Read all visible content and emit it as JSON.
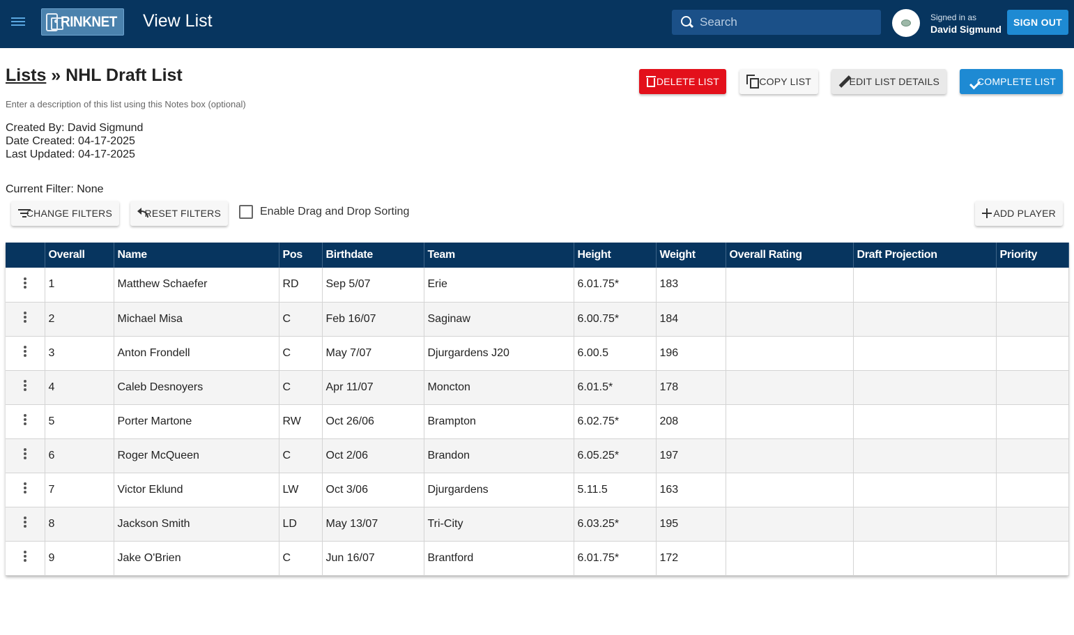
{
  "header": {
    "logo_text": "RINKNET",
    "app_title": "View List",
    "search_placeholder": "Search",
    "signed_in_label": "Signed in as",
    "user_name": "David Sigmund",
    "sign_out_label": "SIGN OUT"
  },
  "page": {
    "breadcrumb_link": "Lists",
    "breadcrumb_sep": " » ",
    "list_name": "NHL Draft List",
    "description": "Enter a description of this list using this Notes box (optional)",
    "created_by": "Created By: David Sigmund",
    "date_created": "Date Created: 04-17-2025",
    "last_updated": "Last Updated: 04-17-2025",
    "current_filter": "Current Filter: None"
  },
  "actions": {
    "delete_list": "DELETE LIST",
    "copy_list": "COPY LIST",
    "edit_list_details": "EDIT LIST DETAILS",
    "complete_list": "COMPLETE LIST",
    "change_filters": "CHANGE FILTERS",
    "reset_filters": "RESET FILTERS",
    "drag_drop_label": "Enable Drag and Drop Sorting",
    "drag_drop_checked": false,
    "add_player": "ADD PLAYER"
  },
  "colors": {
    "header_bg": "#07355f",
    "primary": "#1e8ad3",
    "danger": "#e3101b"
  },
  "table": {
    "columns": [
      "",
      "Overall",
      "Name",
      "Pos",
      "Birthdate",
      "Team",
      "Height",
      "Weight",
      "Overall Rating",
      "Draft Projection",
      "Priority"
    ],
    "rows": [
      [
        "1",
        "Matthew Schaefer",
        "RD",
        "Sep 5/07",
        "Erie",
        "6.01.75*",
        "183",
        "",
        "",
        ""
      ],
      [
        "2",
        "Michael Misa",
        "C",
        "Feb 16/07",
        "Saginaw",
        "6.00.75*",
        "184",
        "",
        "",
        ""
      ],
      [
        "3",
        "Anton Frondell",
        "C",
        "May 7/07",
        "Djurgardens J20",
        "6.00.5",
        "196",
        "",
        "",
        ""
      ],
      [
        "4",
        "Caleb Desnoyers",
        "C",
        "Apr 11/07",
        "Moncton",
        "6.01.5*",
        "178",
        "",
        "",
        ""
      ],
      [
        "5",
        "Porter Martone",
        "RW",
        "Oct 26/06",
        "Brampton",
        "6.02.75*",
        "208",
        "",
        "",
        ""
      ],
      [
        "6",
        "Roger McQueen",
        "C",
        "Oct 2/06",
        "Brandon",
        "6.05.25*",
        "197",
        "",
        "",
        ""
      ],
      [
        "7",
        "Victor Eklund",
        "LW",
        "Oct 3/06",
        "Djurgardens",
        "5.11.5",
        "163",
        "",
        "",
        ""
      ],
      [
        "8",
        "Jackson Smith",
        "LD",
        "May 13/07",
        "Tri-City",
        "6.03.25*",
        "195",
        "",
        "",
        ""
      ],
      [
        "9",
        "Jake O'Brien",
        "C",
        "Jun 16/07",
        "Brantford",
        "6.01.75*",
        "172",
        "",
        "",
        ""
      ]
    ]
  }
}
